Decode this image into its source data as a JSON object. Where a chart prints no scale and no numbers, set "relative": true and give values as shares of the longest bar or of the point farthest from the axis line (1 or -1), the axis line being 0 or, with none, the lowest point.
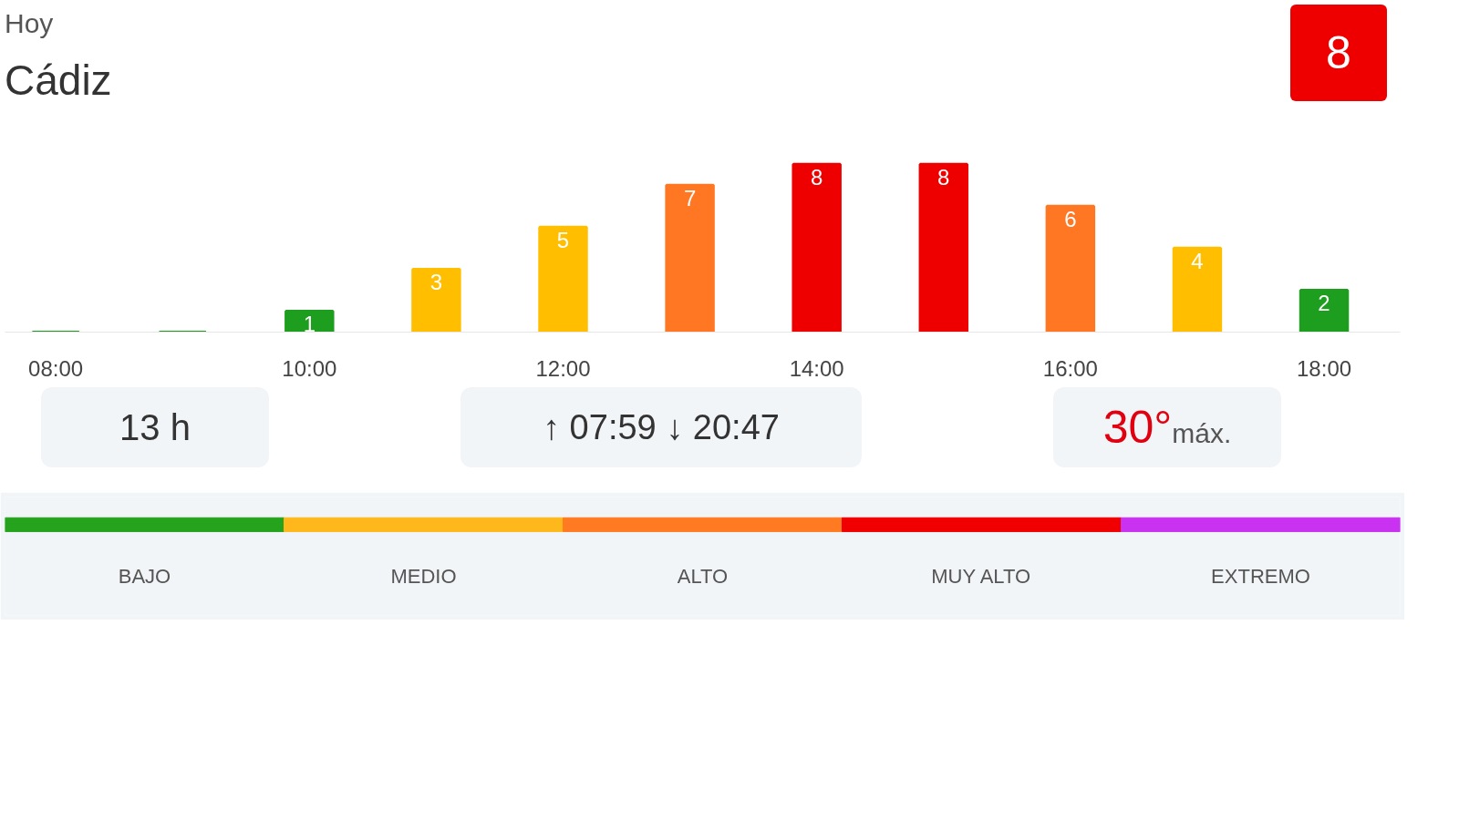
{
  "chart_data": [
    {
      "type": "bar",
      "subtitle": "Hoy",
      "title": "Cádiz",
      "x": [
        8,
        9,
        10,
        11,
        12,
        13,
        14,
        15,
        16,
        17,
        18
      ],
      "values": [
        0,
        0,
        1,
        3,
        5,
        7,
        8,
        8,
        6,
        4,
        2
      ],
      "value_labels": [
        null,
        null,
        "1",
        "3",
        "5",
        "7",
        "8",
        "8",
        "6",
        "4",
        "2"
      ],
      "colors": [
        "#1e9e1e",
        "#1e9e1e",
        "#1e9e1e",
        "#ffbf00",
        "#ffbf00",
        "#ff7722",
        "#ee0000",
        "#ee0000",
        "#ff7722",
        "#ffbf00",
        "#1e9e1e"
      ],
      "xlim": [
        7.6,
        18.6
      ],
      "xticks": [
        {
          "value": 8,
          "label": "08:00"
        },
        {
          "value": 10,
          "label": "10:00"
        },
        {
          "value": 12,
          "label": "12:00"
        },
        {
          "value": 14,
          "label": "14:00"
        },
        {
          "value": 16,
          "label": "16:00"
        },
        {
          "value": 18,
          "label": "18:00"
        }
      ],
      "tick_labels": "x",
      "annotations": [
        "8",
        "13 h",
        "↑ 07:59 ↓ 20:47",
        "30°",
        "máx."
      ]
    },
    {
      "type": "bar",
      "orientation": "horizontal",
      "stacked": true,
      "relative": true,
      "categories": [
        null
      ],
      "series": [
        {
          "name": "BAJO",
          "color": "#26a31d",
          "values": [
            0.2
          ]
        },
        {
          "name": "MEDIO",
          "color": "#ffb81c",
          "values": [
            0.2
          ]
        },
        {
          "name": "ALTO",
          "color": "#ff7a21",
          "values": [
            0.2
          ]
        },
        {
          "name": "MUY ALTO",
          "color": "#f00000",
          "values": [
            0.2
          ]
        },
        {
          "name": "EXTREMO",
          "color": "#c832f0",
          "values": [
            0.2
          ]
        }
      ]
    }
  ]
}
